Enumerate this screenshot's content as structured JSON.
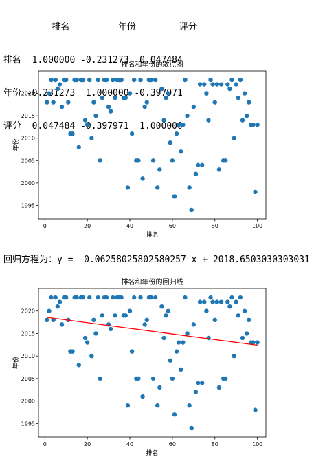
{
  "correlation_table": {
    "header": "         排名         年份        评分",
    "rows": [
      "排名  1.000000 -0.231273  0.047484",
      "年份 -0.231273  1.000000 -0.397971",
      "评分  0.047484 -0.397971  1.000000"
    ]
  },
  "regression_text": "回归方程为：y = -0.06258025802580257 x + 2018.6503030303031",
  "chart_data": [
    {
      "type": "scatter",
      "title": "排名和年份的散点图",
      "xlabel": "排名",
      "ylabel": "年份",
      "xlim": [
        -3,
        104
      ],
      "ylim": [
        1992,
        2025
      ],
      "xticks": [
        0,
        20,
        40,
        60,
        80,
        100
      ],
      "yticks": [
        1995,
        2000,
        2005,
        2010,
        2015,
        2020
      ],
      "color": "#1f77b4",
      "points": {
        "x": [
          1,
          2,
          3,
          4,
          5,
          6,
          7,
          8,
          9,
          10,
          11,
          12,
          13,
          14,
          15,
          16,
          17,
          18,
          19,
          20,
          21,
          22,
          23,
          24,
          25,
          26,
          27,
          28,
          29,
          30,
          31,
          32,
          33,
          34,
          35,
          36,
          37,
          38,
          39,
          40,
          41,
          42,
          43,
          44,
          45,
          46,
          47,
          48,
          49,
          50,
          51,
          52,
          53,
          54,
          55,
          56,
          57,
          58,
          59,
          60,
          61,
          62,
          63,
          64,
          65,
          66,
          67,
          68,
          69,
          70,
          71,
          72,
          73,
          74,
          75,
          76,
          77,
          78,
          79,
          80,
          81,
          82,
          83,
          84,
          85,
          86,
          87,
          88,
          89,
          90,
          91,
          92,
          93,
          94,
          95,
          96,
          97,
          98,
          99,
          100
        ],
        "y": [
          2018,
          2020,
          2023,
          2018,
          2023,
          2021,
          2022,
          2017,
          2023,
          2023,
          2018,
          2011,
          2011,
          2023,
          2023,
          2008,
          2023,
          2023,
          2014,
          2013,
          2023,
          2010,
          2018,
          2015,
          2023,
          2005,
          2019,
          2023,
          2023,
          2017,
          2016,
          2023,
          2019,
          2023,
          2023,
          2023,
          2019,
          2019,
          1999,
          2020,
          2011,
          2023,
          2005,
          2005,
          2023,
          2001,
          2017,
          2018,
          2023,
          2023,
          2005,
          2023,
          1999,
          2003,
          2021,
          2014,
          2019,
          2020,
          2009,
          2005,
          1997,
          2011,
          2013,
          2007,
          2013,
          2023,
          2015,
          1999,
          1994,
          2017,
          2002,
          2004,
          2022,
          2004,
          2022,
          2020,
          2014,
          2023,
          2022,
          2018,
          2022,
          2003,
          2022,
          2005,
          2005,
          2022,
          2021,
          2023,
          2010,
          2022,
          2019,
          2023,
          2014,
          2020,
          2015,
          2018,
          2013,
          2013,
          1998,
          2013
        ]
      }
    },
    {
      "type": "scatter",
      "title": "排名和年份的回归线",
      "xlabel": "排名",
      "ylabel": "年份",
      "xlim": [
        -3,
        104
      ],
      "ylim": [
        1992,
        2025
      ],
      "xticks": [
        0,
        20,
        40,
        60,
        80,
        100
      ],
      "yticks": [
        1995,
        2000,
        2005,
        2010,
        2015,
        2020
      ],
      "color": "#1f77b4",
      "regression_line": {
        "slope": -0.06258025802580257,
        "intercept": 2018.6503030303031,
        "x_range": [
          1,
          100
        ],
        "color": "#ff0000"
      }
    }
  ]
}
